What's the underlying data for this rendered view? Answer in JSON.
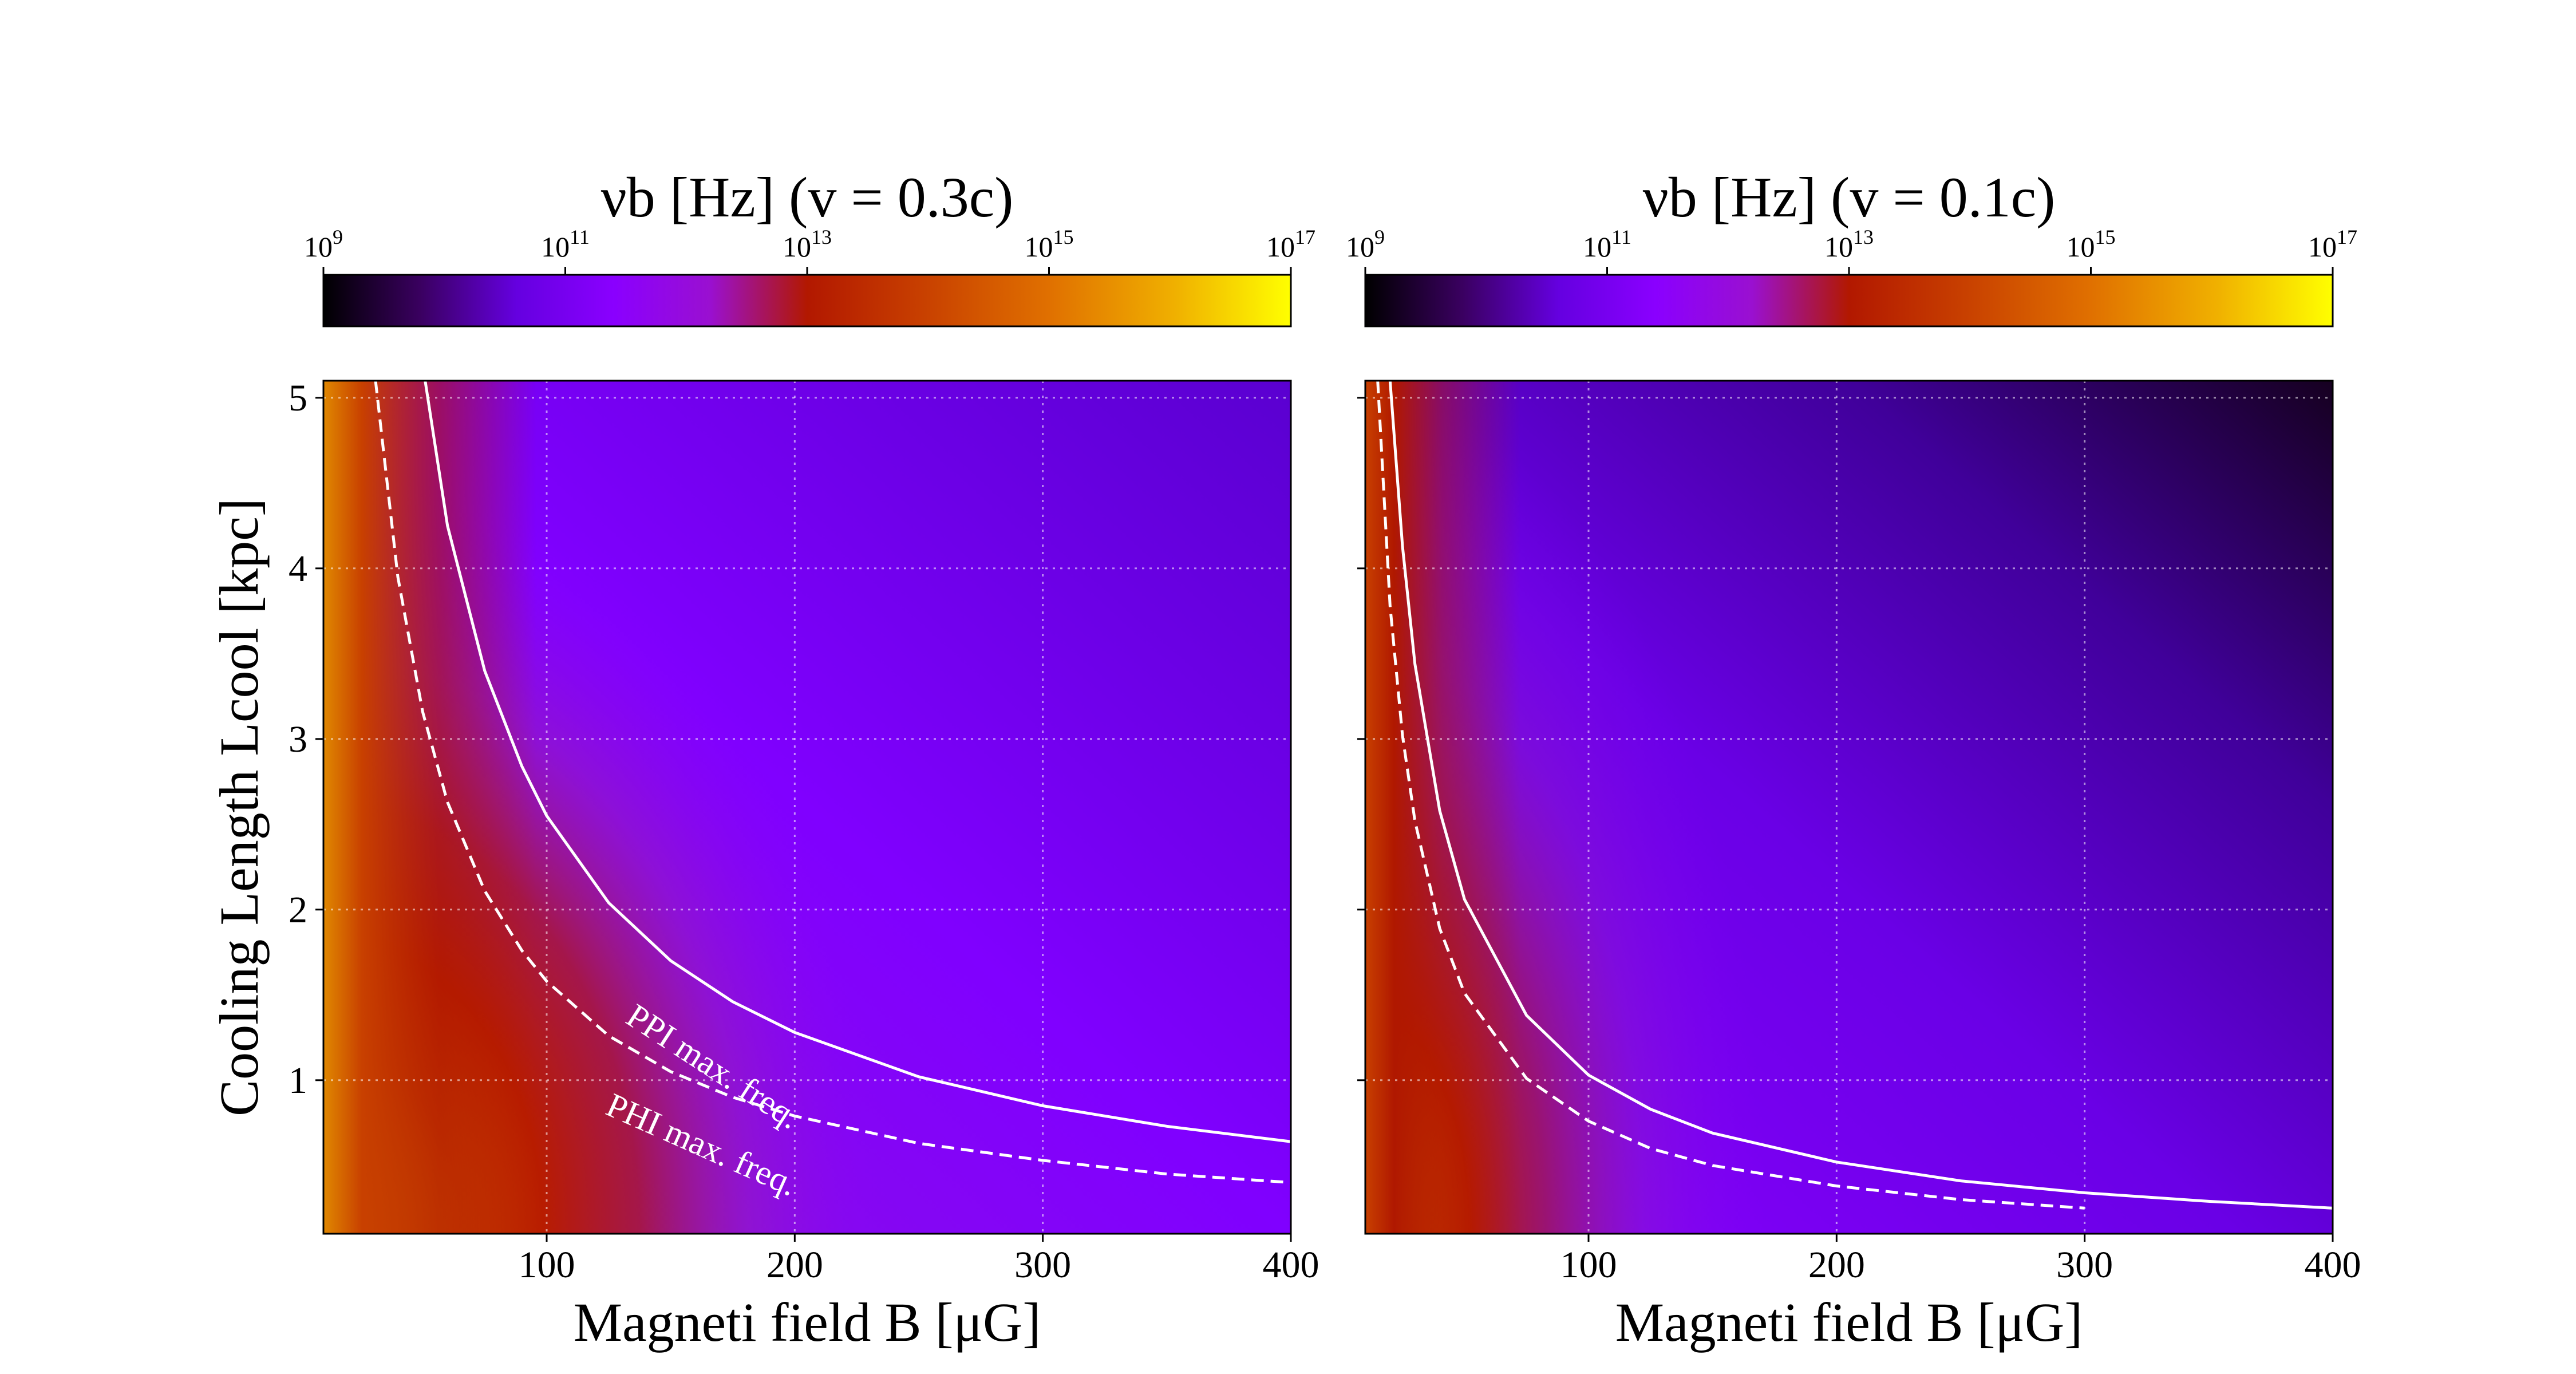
{
  "chart_data": [
    {
      "type": "heatmap",
      "colorbar": {
        "title": "νb [Hz] (v = 0.3c)",
        "scale": "log",
        "range": [
          1000000000.0,
          1e+17
        ],
        "ticks": [
          {
            "base": "10",
            "exp": "9"
          },
          {
            "base": "10",
            "exp": "11"
          },
          {
            "base": "10",
            "exp": "13"
          },
          {
            "base": "10",
            "exp": "15"
          },
          {
            "base": "10",
            "exp": "17"
          }
        ],
        "colormap": "gnuplot"
      },
      "xlabel": "Magneti field B [μG]",
      "ylabel": "Cooling Length Lcool [kpc]",
      "xlim": [
        10,
        400
      ],
      "ylim": [
        0.1,
        5.1
      ],
      "xticks": [
        100,
        200,
        300,
        400
      ],
      "yticks": [
        1,
        2,
        3,
        4,
        5
      ],
      "grid": true,
      "series": [
        {
          "name": "PPI max. freq.",
          "style": "solid",
          "color": "#ffffff",
          "x": [
            51,
            60,
            75,
            90,
            100,
            125,
            150,
            175,
            200,
            250,
            300,
            350,
            400
          ],
          "y": [
            5.1,
            4.25,
            3.4,
            2.84,
            2.55,
            2.04,
            1.7,
            1.46,
            1.28,
            1.02,
            0.85,
            0.73,
            0.64
          ]
        },
        {
          "name": "PHI max. freq.",
          "style": "dashed",
          "color": "#ffffff",
          "x": [
            31,
            40,
            50,
            60,
            75,
            90,
            100,
            125,
            150,
            175,
            200,
            250,
            300,
            350,
            400
          ],
          "y": [
            5.1,
            3.95,
            3.16,
            2.63,
            2.11,
            1.76,
            1.58,
            1.26,
            1.05,
            0.9,
            0.79,
            0.63,
            0.53,
            0.45,
            0.4
          ]
        }
      ]
    },
    {
      "type": "heatmap",
      "colorbar": {
        "title": "νb [Hz] (v = 0.1c)",
        "scale": "log",
        "range": [
          1000000000.0,
          1e+17
        ],
        "ticks": [
          {
            "base": "10",
            "exp": "9"
          },
          {
            "base": "10",
            "exp": "11"
          },
          {
            "base": "10",
            "exp": "13"
          },
          {
            "base": "10",
            "exp": "15"
          },
          {
            "base": "10",
            "exp": "17"
          }
        ],
        "colormap": "gnuplot"
      },
      "xlabel": "Magneti field B [μG]",
      "xlim": [
        10,
        400
      ],
      "ylim": [
        0.1,
        5.1
      ],
      "xticks": [
        100,
        200,
        300,
        400
      ],
      "yticks": [
        1,
        2,
        3,
        4,
        5
      ],
      "grid": true,
      "series": [
        {
          "name": "",
          "style": "solid",
          "color": "#ffffff",
          "x": [
            20,
            25,
            30,
            40,
            50,
            75,
            100,
            125,
            150,
            200,
            250,
            300,
            350,
            400
          ],
          "y": [
            5.1,
            4.13,
            3.44,
            2.58,
            2.06,
            1.38,
            1.03,
            0.83,
            0.69,
            0.52,
            0.41,
            0.34,
            0.29,
            0.25
          ]
        },
        {
          "name": "",
          "style": "dashed",
          "color": "#ffffff",
          "x": [
            15,
            20,
            25,
            30,
            40,
            50,
            75,
            100,
            125,
            150,
            200,
            250,
            300
          ],
          "y": [
            5.1,
            3.78,
            3.02,
            2.52,
            1.89,
            1.51,
            1.01,
            0.76,
            0.6,
            0.5,
            0.38,
            0.3,
            0.25
          ]
        }
      ]
    }
  ]
}
